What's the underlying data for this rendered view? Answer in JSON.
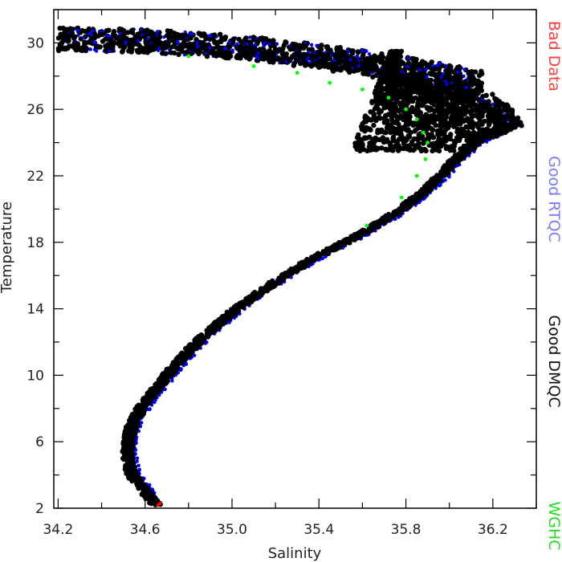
{
  "chart_data": {
    "type": "scatter",
    "title": "",
    "xlabel": "Salinity",
    "ylabel": "Temperature",
    "xlim": [
      34.18,
      36.4
    ],
    "ylim": [
      2.0,
      32.0
    ],
    "x_ticks": [
      "34.2",
      "34.6",
      "35.0",
      "35.4",
      "35.8",
      "36.2"
    ],
    "y_ticks": [
      "2",
      "6",
      "10",
      "14",
      "18",
      "22",
      "26",
      "30"
    ],
    "x_tick_values": [
      34.2,
      34.6,
      35.0,
      35.4,
      35.8,
      36.2
    ],
    "y_tick_values": [
      2,
      6,
      10,
      14,
      18,
      22,
      26,
      30
    ],
    "grid": false,
    "legend_placement": "right-side vertical",
    "legend": [
      {
        "label": "Bad Data",
        "color": "#ff3b3b"
      },
      {
        "label": "Good RTQC",
        "color": "#7a7aff"
      },
      {
        "label": "Good DMQC",
        "color": "#111111"
      },
      {
        "label": "WGHC",
        "color": "#22dd22"
      }
    ],
    "series": [
      {
        "name": "Good DMQC",
        "color": "#000000",
        "marker": "large-dot",
        "curve_points": [
          {
            "x": 34.65,
            "y": 2.2
          },
          {
            "x": 34.6,
            "y": 3.0
          },
          {
            "x": 34.54,
            "y": 4.0
          },
          {
            "x": 34.52,
            "y": 5.0
          },
          {
            "x": 34.52,
            "y": 6.0
          },
          {
            "x": 34.54,
            "y": 7.0
          },
          {
            "x": 34.58,
            "y": 8.0
          },
          {
            "x": 34.64,
            "y": 9.0
          },
          {
            "x": 34.7,
            "y": 10.0
          },
          {
            "x": 34.77,
            "y": 11.0
          },
          {
            "x": 34.84,
            "y": 12.0
          },
          {
            "x": 34.93,
            "y": 13.0
          },
          {
            "x": 35.02,
            "y": 14.0
          },
          {
            "x": 35.13,
            "y": 15.0
          },
          {
            "x": 35.24,
            "y": 16.0
          },
          {
            "x": 35.37,
            "y": 17.0
          },
          {
            "x": 35.52,
            "y": 18.0
          },
          {
            "x": 35.66,
            "y": 19.0
          },
          {
            "x": 35.78,
            "y": 20.0
          },
          {
            "x": 35.88,
            "y": 21.0
          },
          {
            "x": 35.96,
            "y": 22.0
          },
          {
            "x": 36.03,
            "y": 23.0
          },
          {
            "x": 36.12,
            "y": 24.0
          },
          {
            "x": 36.28,
            "y": 25.0
          },
          {
            "x": 36.22,
            "y": 26.0
          },
          {
            "x": 36.05,
            "y": 27.0
          },
          {
            "x": 35.8,
            "y": 28.0
          },
          {
            "x": 35.4,
            "y": 29.0
          },
          {
            "x": 35.0,
            "y": 29.6
          },
          {
            "x": 34.6,
            "y": 30.0
          },
          {
            "x": 34.3,
            "y": 30.3
          }
        ],
        "spread_salinity": 0.025,
        "near_surface_spread_salinity": 0.12,
        "near_surface_spread_temperature": 0.7
      },
      {
        "name": "Good RTQC",
        "color": "#0000ff",
        "marker": "small-dot",
        "offset_salinity": 0.02
      },
      {
        "name": "WGHC",
        "color": "#00ff00",
        "marker": "small-dot",
        "points": [
          {
            "x": 35.62,
            "y": 19.0
          },
          {
            "x": 35.78,
            "y": 20.7
          },
          {
            "x": 35.85,
            "y": 22.0
          },
          {
            "x": 35.89,
            "y": 23.0
          },
          {
            "x": 35.9,
            "y": 24.0
          },
          {
            "x": 35.88,
            "y": 24.6
          },
          {
            "x": 35.85,
            "y": 25.4
          },
          {
            "x": 35.8,
            "y": 26.0
          },
          {
            "x": 35.72,
            "y": 26.7
          },
          {
            "x": 35.6,
            "y": 27.2
          },
          {
            "x": 35.45,
            "y": 27.6
          },
          {
            "x": 35.3,
            "y": 28.2
          },
          {
            "x": 35.1,
            "y": 28.6
          },
          {
            "x": 34.8,
            "y": 29.2
          }
        ]
      },
      {
        "name": "Bad Data",
        "color": "#ff0000",
        "marker": "small-dot",
        "points": [
          {
            "x": 34.66,
            "y": 2.2
          },
          {
            "x": 34.67,
            "y": 2.3
          }
        ]
      }
    ]
  }
}
